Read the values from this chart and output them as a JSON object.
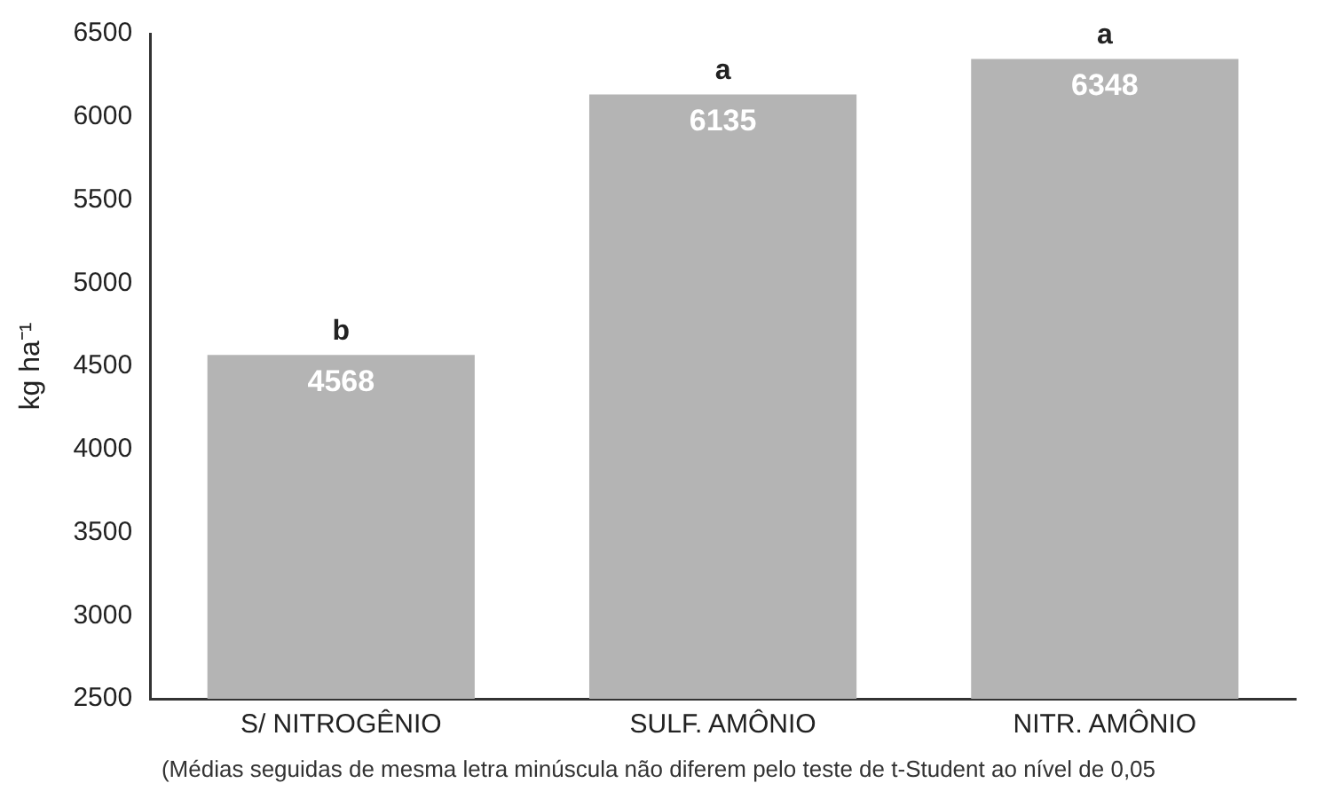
{
  "chart_data": {
    "type": "bar",
    "ylabel": "kg ha⁻¹",
    "categories": [
      "S/ NITROGÊNIO",
      "SULF. AMÔNIO",
      "NITR. AMÔNIO"
    ],
    "values": [
      4568,
      6135,
      6348
    ],
    "color": "#b4b4b4",
    "data_labels": true,
    "ylim": [
      2500,
      6500
    ],
    "yticks": [
      2500,
      3000,
      3500,
      4000,
      4500,
      5000,
      5500,
      6000,
      6500
    ],
    "grid": false,
    "legend": false,
    "annotations": [
      {
        "text": "b",
        "x": "S/ NITROGÊNIO",
        "y": 4568
      },
      {
        "text": "a",
        "x": "SULF. AMÔNIO",
        "y": 6135
      },
      {
        "text": "a",
        "x": "NITR. AMÔNIO",
        "y": 6348
      },
      "(Médias seguidas de mesma letra minúscula não diferem pelo teste de t-Student  ao nível de 0,05"
    ]
  }
}
